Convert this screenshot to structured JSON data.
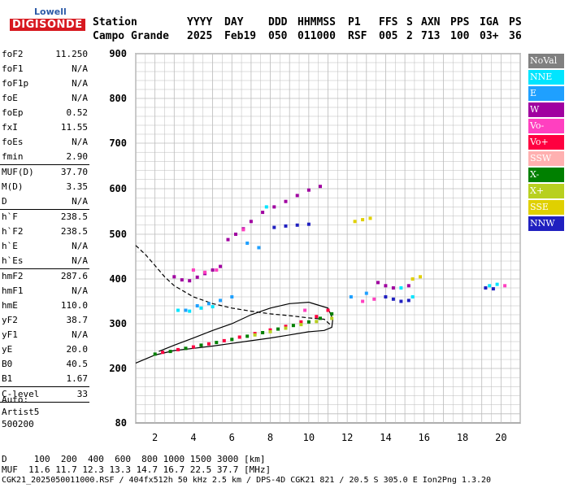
{
  "logo": {
    "top": "Lowell",
    "bottom": "DIGISONDE"
  },
  "header": {
    "row1": [
      "Station",
      "YYYY",
      "DAY",
      "DDD",
      "HHMMSS",
      "P1",
      "FFS",
      "S",
      "AXN",
      "PPS",
      "IGA",
      "PS"
    ],
    "row2": [
      "Campo Grande",
      "2025",
      "Feb19",
      "050",
      "011000",
      "RSF",
      "005",
      "2",
      "713",
      "100",
      "03+",
      "36"
    ]
  },
  "params": [
    {
      "k": "foF2",
      "v": "11.250"
    },
    {
      "k": "foF1",
      "v": "N/A"
    },
    {
      "k": "foF1p",
      "v": "N/A"
    },
    {
      "k": "foE",
      "v": "N/A"
    },
    {
      "k": "foEp",
      "v": "0.52"
    },
    {
      "k": "fxI",
      "v": "11.55"
    },
    {
      "k": "foEs",
      "v": "N/A"
    },
    {
      "k": "fmin",
      "v": "2.90"
    },
    {
      "k": "MUF(D)",
      "v": "37.70"
    },
    {
      "k": "M(D)",
      "v": "3.35"
    },
    {
      "k": "D",
      "v": "N/A"
    },
    {
      "k": "h`F",
      "v": "238.5"
    },
    {
      "k": "h`F2",
      "v": "238.5"
    },
    {
      "k": "h`E",
      "v": "N/A"
    },
    {
      "k": "h`Es",
      "v": "N/A"
    },
    {
      "k": "hmF2",
      "v": "287.6"
    },
    {
      "k": "hmF1",
      "v": "N/A"
    },
    {
      "k": "hmE",
      "v": "110.0"
    },
    {
      "k": "yF2",
      "v": "38.7"
    },
    {
      "k": "yF1",
      "v": "N/A"
    },
    {
      "k": "yE",
      "v": "20.0"
    },
    {
      "k": "B0",
      "v": "40.5"
    },
    {
      "k": "B1",
      "v": "1.67"
    },
    {
      "k": "C-level",
      "v": "33"
    }
  ],
  "auto": [
    "Auto:",
    "Artist5",
    "500200"
  ],
  "legend": [
    {
      "label": "NoVal",
      "color": "#808080"
    },
    {
      "label": "NNE",
      "color": "#00e5ff"
    },
    {
      "label": "E",
      "color": "#1fa0ff"
    },
    {
      "label": "W",
      "color": "#a000a0"
    },
    {
      "label": "Vo-",
      "color": "#ff40c0"
    },
    {
      "label": "Vo+",
      "color": "#ff0040"
    },
    {
      "label": "SSW",
      "color": "#ffb0b0"
    },
    {
      "label": "X-",
      "color": "#008000"
    },
    {
      "label": "X+",
      "color": "#b8d020"
    },
    {
      "label": "SSE",
      "color": "#e0d000"
    },
    {
      "label": "NNW",
      "color": "#2020c0"
    }
  ],
  "footer": {
    "d_row": "D     100  200  400  600  800 1000 1500 3000 [km]",
    "muf_row": "MUF  11.6 11.7 12.3 13.3 14.7 16.7 22.5 37.7 [MHz]",
    "info_row": "CGK21_2025050011000.RSF / 404fx512h 50 kHz 2.5 km / DPS-4D CGK21 821 / 20.5 S 305.0 E Ion2Png 1.3.20"
  },
  "chart_data": {
    "type": "scatter",
    "xlabel": "",
    "ylabel": "",
    "xlim": [
      1,
      21
    ],
    "ylim": [
      80,
      900
    ],
    "x_ticks": [
      2,
      4,
      6,
      8,
      10,
      12,
      14,
      16,
      18,
      20
    ],
    "y_ticks": [
      80,
      200,
      300,
      400,
      500,
      600,
      700,
      800,
      900
    ],
    "grid": true,
    "legend_position": "right",
    "series": [
      {
        "name": "X-",
        "color": "#008000",
        "x": [
          2.0,
          2.8,
          3.6,
          4.4,
          5.2,
          6.0,
          6.8,
          7.6,
          8.4,
          9.2,
          10.0,
          10.6,
          11.2
        ],
        "y": [
          232,
          238,
          245,
          252,
          258,
          265,
          272,
          280,
          288,
          296,
          304,
          312,
          322
        ]
      },
      {
        "name": "Vo+",
        "color": "#ff0040",
        "x": [
          2.4,
          3.2,
          4.0,
          4.8,
          5.6,
          6.4,
          7.2,
          8.0,
          8.8,
          9.6,
          10.4,
          11.0
        ],
        "y": [
          236,
          242,
          248,
          255,
          262,
          270,
          278,
          286,
          294,
          304,
          316,
          330
        ]
      },
      {
        "name": "X+",
        "color": "#b8d020",
        "x": [
          7.2,
          8.0,
          8.8,
          9.6,
          10.4,
          11.2
        ],
        "y": [
          275,
          282,
          290,
          298,
          305,
          312
        ]
      },
      {
        "name": "W",
        "color": "#a000a0",
        "x": [
          3.0,
          3.4,
          3.8,
          4.2,
          4.6,
          5.0,
          5.4,
          5.8,
          6.2,
          6.6,
          7.0,
          7.6,
          8.2,
          8.8,
          9.4,
          10.0,
          10.6,
          13.6,
          14.0,
          14.4,
          15.2
        ],
        "y": [
          405,
          398,
          396,
          404,
          412,
          420,
          428,
          488,
          500,
          512,
          528,
          548,
          560,
          572,
          585,
          597,
          605,
          392,
          385,
          380,
          385
        ]
      },
      {
        "name": "NNE",
        "color": "#00e5ff",
        "x": [
          3.2,
          3.8,
          4.4,
          5.0,
          7.8,
          14.8,
          15.4,
          19.4,
          19.8
        ],
        "y": [
          330,
          328,
          335,
          338,
          560,
          380,
          360,
          385,
          388
        ]
      },
      {
        "name": "E",
        "color": "#1fa0ff",
        "x": [
          3.6,
          4.2,
          4.8,
          5.4,
          6.0,
          6.8,
          7.4,
          12.2,
          13.0
        ],
        "y": [
          330,
          340,
          345,
          352,
          360,
          480,
          470,
          360,
          368
        ]
      },
      {
        "name": "NNW",
        "color": "#2020c0",
        "x": [
          8.2,
          8.8,
          9.4,
          10.0,
          14.0,
          14.4,
          14.8,
          15.2,
          19.2,
          19.6
        ],
        "y": [
          515,
          518,
          520,
          522,
          360,
          355,
          350,
          352,
          380,
          378
        ]
      },
      {
        "name": "Vo-",
        "color": "#ff40c0",
        "x": [
          4.0,
          4.6,
          5.2,
          6.6,
          9.8,
          12.8,
          13.4,
          20.2
        ],
        "y": [
          420,
          415,
          420,
          510,
          330,
          350,
          355,
          385
        ]
      },
      {
        "name": "SSE",
        "color": "#e0d000",
        "x": [
          12.4,
          12.8,
          13.2,
          15.4,
          15.8
        ],
        "y": [
          528,
          532,
          535,
          400,
          405
        ]
      }
    ],
    "curves": [
      {
        "name": "",
        "style": "dashed",
        "x": [
          1.0,
          1.5,
          2.0,
          2.5,
          3.0,
          4.0,
          5.0,
          6.0,
          7.0,
          8.0,
          9.0,
          10.0,
          10.8,
          11.2
        ],
        "y": [
          475,
          455,
          430,
          405,
          385,
          360,
          345,
          335,
          328,
          322,
          318,
          313,
          310,
          295
        ]
      },
      {
        "name": "",
        "style": "solid",
        "x": [
          1.0,
          2.0,
          3.0,
          4.0,
          5.0,
          6.0,
          7.0,
          8.0,
          9.0,
          10.0,
          10.8,
          11.2,
          11.25,
          11.0,
          10.0,
          9.0,
          8.0,
          7.0,
          6.0,
          5.0,
          4.0,
          3.0,
          2.2
        ],
        "y": [
          212,
          230,
          240,
          245,
          250,
          256,
          262,
          268,
          275,
          282,
          285,
          292,
          310,
          335,
          348,
          345,
          335,
          320,
          300,
          285,
          268,
          252,
          238
        ]
      }
    ]
  }
}
